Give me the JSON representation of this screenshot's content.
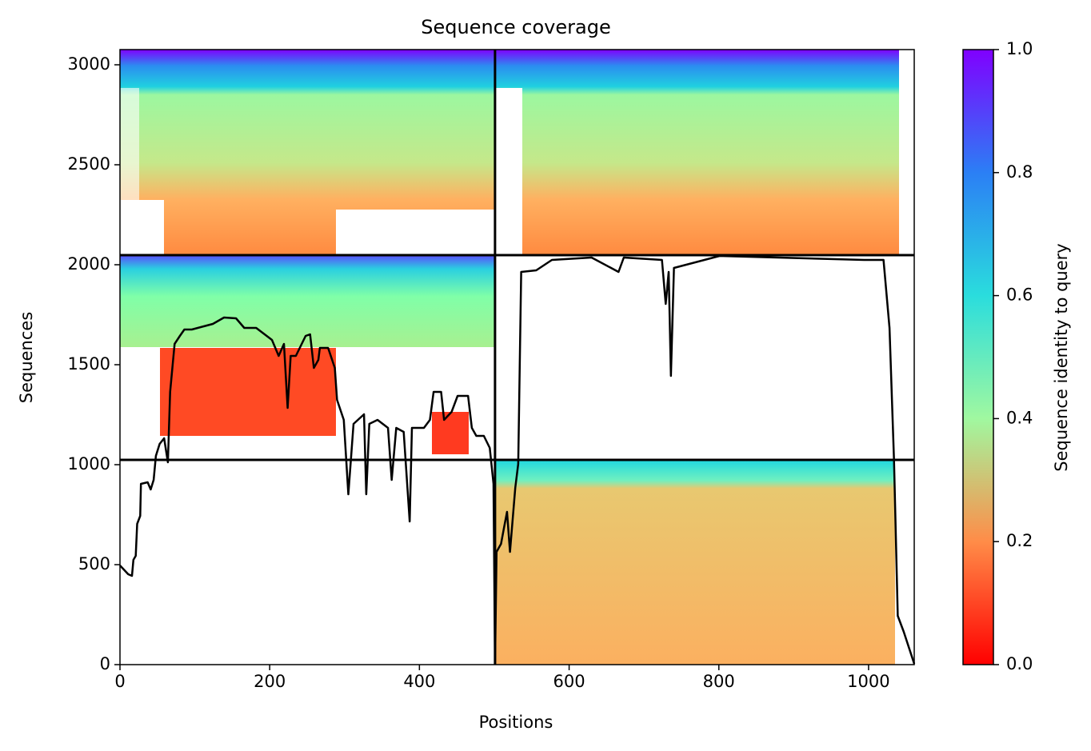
{
  "chart_data": {
    "type": "line",
    "title": "Sequence coverage",
    "xlabel": "Positions",
    "ylabel": "Sequences",
    "xlim": [
      0,
      1061
    ],
    "ylim": [
      0,
      3076
    ],
    "xticks": [
      0,
      200,
      400,
      600,
      800,
      1000
    ],
    "yticks": [
      0,
      500,
      1000,
      1500,
      2000,
      2500,
      3000
    ],
    "boundaries": {
      "x": [
        501
      ],
      "y": [
        1024,
        2048
      ]
    },
    "series": [
      {
        "color": "#000000",
        "x": [
          0,
          5,
          11,
          16,
          18,
          21,
          23,
          27,
          28,
          37,
          41,
          45,
          48,
          53,
          59,
          64,
          67,
          73,
          80,
          86,
          96,
          112,
          124,
          139,
          155,
          166,
          182,
          203,
          212,
          219,
          224,
          228,
          235,
          248,
          254,
          259,
          265,
          267,
          278,
          287,
          290,
          299,
          305,
          312,
          326,
          329,
          333,
          344,
          358,
          363,
          369,
          379,
          387,
          390,
          406,
          414,
          419,
          429,
          433,
          443,
          451,
          465,
          470,
          476,
          486,
          494,
          499,
          501,
          503,
          509,
          513,
          517,
          521,
          528,
          532,
          536,
          556,
          577,
          630,
          666,
          673,
          724,
          729,
          733,
          736,
          740,
          801,
          994,
          1020,
          1028,
          1034,
          1039,
          1047,
          1061
        ],
        "values": [
          496,
          476,
          452,
          444,
          524,
          544,
          704,
          744,
          904,
          912,
          876,
          924,
          1044,
          1104,
          1132,
          1012,
          1364,
          1604,
          1644,
          1676,
          1676,
          1692,
          1704,
          1736,
          1732,
          1684,
          1684,
          1624,
          1544,
          1604,
          1284,
          1544,
          1544,
          1644,
          1652,
          1484,
          1524,
          1584,
          1584,
          1484,
          1324,
          1224,
          852,
          1204,
          1252,
          852,
          1204,
          1224,
          1184,
          924,
          1184,
          1164,
          716,
          1184,
          1184,
          1224,
          1364,
          1364,
          1224,
          1264,
          1344,
          1344,
          1184,
          1144,
          1144,
          1084,
          904,
          4,
          564,
          604,
          684,
          764,
          564,
          884,
          1004,
          1964,
          1972,
          2024,
          2036,
          1964,
          2036,
          2024,
          1804,
          1964,
          1444,
          1984,
          2044,
          2024,
          2024,
          1684,
          1024,
          244,
          164,
          4
        ]
      }
    ],
    "colorbar": {
      "label": "Sequence identity to query",
      "lim": [
        0,
        1
      ],
      "ticks": [
        {
          "value": 0,
          "label": "0.0"
        },
        {
          "value": 0.2,
          "label": "0.2"
        },
        {
          "value": 0.4,
          "label": "0.4"
        },
        {
          "value": 0.6,
          "label": "0.6"
        },
        {
          "value": 0.8,
          "label": "0.8"
        },
        {
          "value": 1,
          "label": "1.0"
        }
      ]
    }
  }
}
